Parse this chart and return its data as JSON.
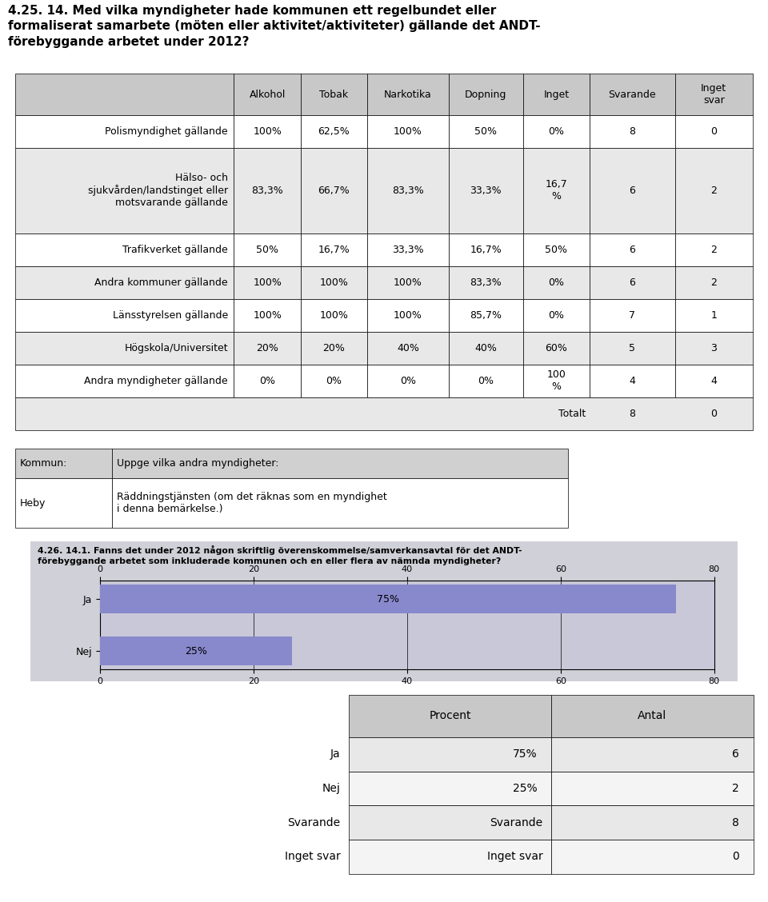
{
  "title": "4.25. 14. Med vilka myndigheter hade kommunen ett regelbundet eller\nformaliserat samarbete (möten eller aktivitet/aktiviteter) gällande det ANDT-\nförebyggande arbetet under 2012?",
  "table1_headers": [
    "Alkohol",
    "Tobak",
    "Narkotika",
    "Dopning",
    "Inget",
    "Svarande",
    "Inget\nsvar"
  ],
  "table1_rows": [
    [
      "Polismyndighet gällande",
      "100%",
      "62,5%",
      "100%",
      "50%",
      "0%",
      "8",
      "0"
    ],
    [
      "Hälso- och\nsjukvården/landstinget eller\nmotsvarande gällande",
      "83,3%",
      "66,7%",
      "83,3%",
      "33,3%",
      "16,7\n%",
      "6",
      "2"
    ],
    [
      "Trafikverket gällande",
      "50%",
      "16,7%",
      "33,3%",
      "16,7%",
      "50%",
      "6",
      "2"
    ],
    [
      "Andra kommuner gällande",
      "100%",
      "100%",
      "100%",
      "83,3%",
      "0%",
      "6",
      "2"
    ],
    [
      "Länsstyrelsen gällande",
      "100%",
      "100%",
      "100%",
      "85,7%",
      "0%",
      "7",
      "1"
    ],
    [
      "Högskola/Universitet",
      "20%",
      "20%",
      "40%",
      "40%",
      "60%",
      "5",
      "3"
    ],
    [
      "Andra myndigheter gällande",
      "0%",
      "0%",
      "0%",
      "0%",
      "100\n%",
      "4",
      "4"
    ]
  ],
  "totalt_label": "Totalt",
  "totalt_svarande": "8",
  "totalt_inget_svar": "0",
  "comment_table_headers": [
    "Kommun:",
    "Uppge vilka andra myndigheter:"
  ],
  "comment_rows": [
    [
      "Heby",
      "Räddningstjänsten (om det räknas som en myndighet\ni denna bemärkelse.)"
    ]
  ],
  "chart_title": "4.26. 14.1. Fanns det under 2012 någon skriftlig överenskommelse/samverkansavtal för det ANDT-\nförebyggande arbetet som inkluderade kommunen och en eller flera av nämnda myndigheter?",
  "bar_labels": [
    "Ja",
    "Nej"
  ],
  "bar_values": [
    75,
    25
  ],
  "bar_color": "#8888cc",
  "chart_bg": "#d0d0d8",
  "plot_bg": "#c8c8d8",
  "xlim": [
    0,
    80
  ],
  "xticks": [
    0,
    20,
    40,
    60,
    80
  ],
  "table2_headers": [
    "",
    "Procent",
    "Antal"
  ],
  "table2_rows": [
    [
      "Ja",
      "75%",
      "6"
    ],
    [
      "Nej",
      "25%",
      "2"
    ],
    [
      "Svarande",
      "",
      "8"
    ],
    [
      "Inget svar",
      "",
      "0"
    ]
  ],
  "header_bg": "#c8c8c8",
  "alt_row_bg": "#e8e8e8",
  "white": "#ffffff",
  "border": "#000000",
  "text_color": "#000000",
  "fig_width": 9.6,
  "fig_height": 11.28,
  "dpi": 100
}
